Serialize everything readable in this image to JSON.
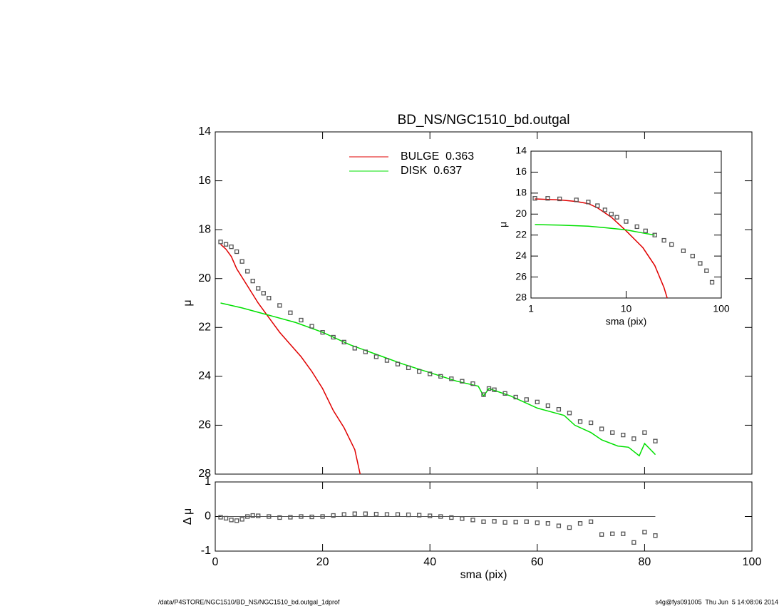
{
  "chart_data": [
    {
      "type": "line",
      "title": "BD_NS/NGC1510_bd.outgal",
      "ylabel": "μ",
      "ylim": [
        14,
        28
      ],
      "y_inverted": true,
      "yticks": [
        14,
        16,
        18,
        20,
        22,
        24,
        26,
        28
      ],
      "xlim": [
        0,
        100
      ],
      "series": [
        {
          "name": "BULGE  0.363",
          "color": "#e00000",
          "style": "line",
          "x": [
            1,
            2,
            3,
            4,
            6,
            8,
            10,
            12,
            14,
            16,
            18,
            20,
            22,
            24,
            26,
            27
          ],
          "values": [
            18.6,
            18.8,
            19.1,
            19.6,
            20.3,
            21.0,
            21.6,
            22.2,
            22.7,
            23.2,
            23.8,
            24.5,
            25.4,
            26.1,
            27.0,
            28.0
          ]
        },
        {
          "name": "DISK  0.637",
          "color": "#00e000",
          "style": "line",
          "x": [
            1,
            5,
            10,
            15,
            20,
            25,
            30,
            35,
            40,
            45,
            49,
            50,
            51,
            55,
            60,
            65,
            67,
            70,
            72,
            75,
            77,
            79,
            80,
            82
          ],
          "values": [
            21.0,
            21.2,
            21.5,
            21.8,
            22.2,
            22.7,
            23.1,
            23.5,
            23.85,
            24.2,
            24.4,
            24.8,
            24.5,
            24.8,
            25.3,
            25.6,
            26.0,
            26.3,
            26.6,
            26.85,
            26.9,
            27.25,
            26.75,
            27.2
          ]
        },
        {
          "color": "#555555",
          "style": "markers",
          "x": [
            1,
            2,
            3,
            4,
            5,
            6,
            7,
            8,
            9,
            10,
            12,
            14,
            16,
            18,
            20,
            22,
            24,
            26,
            28,
            30,
            32,
            34,
            36,
            38,
            40,
            42,
            44,
            46,
            48,
            50,
            51,
            52,
            54,
            56,
            58,
            60,
            62,
            64,
            66,
            68,
            70,
            72,
            74,
            76,
            78,
            80,
            82
          ],
          "values": [
            18.5,
            18.6,
            18.7,
            18.9,
            19.3,
            19.7,
            20.1,
            20.4,
            20.6,
            20.8,
            21.1,
            21.4,
            21.7,
            21.95,
            22.2,
            22.4,
            22.6,
            22.85,
            23.0,
            23.2,
            23.35,
            23.5,
            23.65,
            23.8,
            23.9,
            24.0,
            24.1,
            24.2,
            24.3,
            24.75,
            24.5,
            24.55,
            24.7,
            24.85,
            24.95,
            25.05,
            25.2,
            25.35,
            25.5,
            25.85,
            25.9,
            26.15,
            26.3,
            26.4,
            26.55,
            26.3,
            26.65
          ]
        }
      ]
    },
    {
      "type": "line",
      "xlabel": "sma (pix)",
      "ylabel": "Δ μ",
      "xlim": [
        0,
        100
      ],
      "xticks": [
        0,
        20,
        40,
        60,
        80,
        100
      ],
      "ylim": [
        -1,
        1
      ],
      "yticks": [
        1,
        0,
        -1
      ],
      "series": [
        {
          "color": "#555555",
          "style": "markers",
          "x": [
            1,
            2,
            3,
            4,
            5,
            6,
            7,
            8,
            10,
            12,
            14,
            16,
            18,
            20,
            22,
            24,
            26,
            28,
            30,
            32,
            34,
            36,
            38,
            40,
            42,
            44,
            46,
            48,
            50,
            52,
            54,
            56,
            58,
            60,
            62,
            64,
            66,
            68,
            70,
            72,
            74,
            76,
            78,
            80,
            82
          ],
          "values": [
            -0.02,
            -0.05,
            -0.1,
            -0.12,
            -0.08,
            0.0,
            0.03,
            0.02,
            0.0,
            -0.03,
            -0.02,
            0.0,
            -0.01,
            0.0,
            0.03,
            0.06,
            0.08,
            0.08,
            0.07,
            0.06,
            0.06,
            0.05,
            0.04,
            0.02,
            0.0,
            -0.03,
            -0.06,
            -0.1,
            -0.15,
            -0.14,
            -0.17,
            -0.16,
            -0.15,
            -0.18,
            -0.2,
            -0.27,
            -0.32,
            -0.2,
            -0.15,
            -0.52,
            -0.5,
            -0.5,
            -0.75,
            -0.45,
            -0.55
          ]
        }
      ]
    },
    {
      "type": "line",
      "xlabel": "sma (pix)",
      "ylabel": "μ",
      "log_x": true,
      "xlim": [
        1,
        100
      ],
      "xticks": [
        1,
        10,
        100
      ],
      "ylim": [
        14,
        28
      ],
      "y_inverted": true,
      "yticks": [
        14,
        16,
        18,
        20,
        22,
        24,
        26,
        28
      ],
      "series": [
        {
          "color": "#e00000",
          "style": "line",
          "x": [
            1.1,
            2,
            3,
            4,
            5,
            7,
            10,
            15,
            20,
            25,
            27
          ],
          "values": [
            18.55,
            18.65,
            18.8,
            19.0,
            19.4,
            20.3,
            21.6,
            23.2,
            24.9,
            27.0,
            28.0
          ]
        },
        {
          "color": "#00e000",
          "style": "line",
          "x": [
            1.1,
            2,
            4,
            6,
            10,
            15,
            20
          ],
          "values": [
            21.0,
            21.05,
            21.15,
            21.3,
            21.5,
            21.8,
            22.0
          ]
        },
        {
          "color": "#555555",
          "style": "markers",
          "x": [
            1.1,
            1.5,
            2,
            3,
            4,
            5,
            6,
            7,
            8,
            10,
            13,
            16,
            20,
            25,
            30,
            40,
            50,
            60,
            70,
            80
          ],
          "values": [
            18.5,
            18.5,
            18.55,
            18.65,
            18.85,
            19.2,
            19.6,
            20.0,
            20.3,
            20.7,
            21.2,
            21.6,
            22.0,
            22.5,
            22.9,
            23.5,
            24.0,
            24.7,
            25.4,
            26.5
          ]
        }
      ]
    }
  ],
  "footer": {
    "left": "/data/P4STORE/NGC1510/BD_NS/NGC1510_bd.outgal_1dprof",
    "right": "s4g@fys091005  Thu Jun  5 14:08:06 2014"
  }
}
